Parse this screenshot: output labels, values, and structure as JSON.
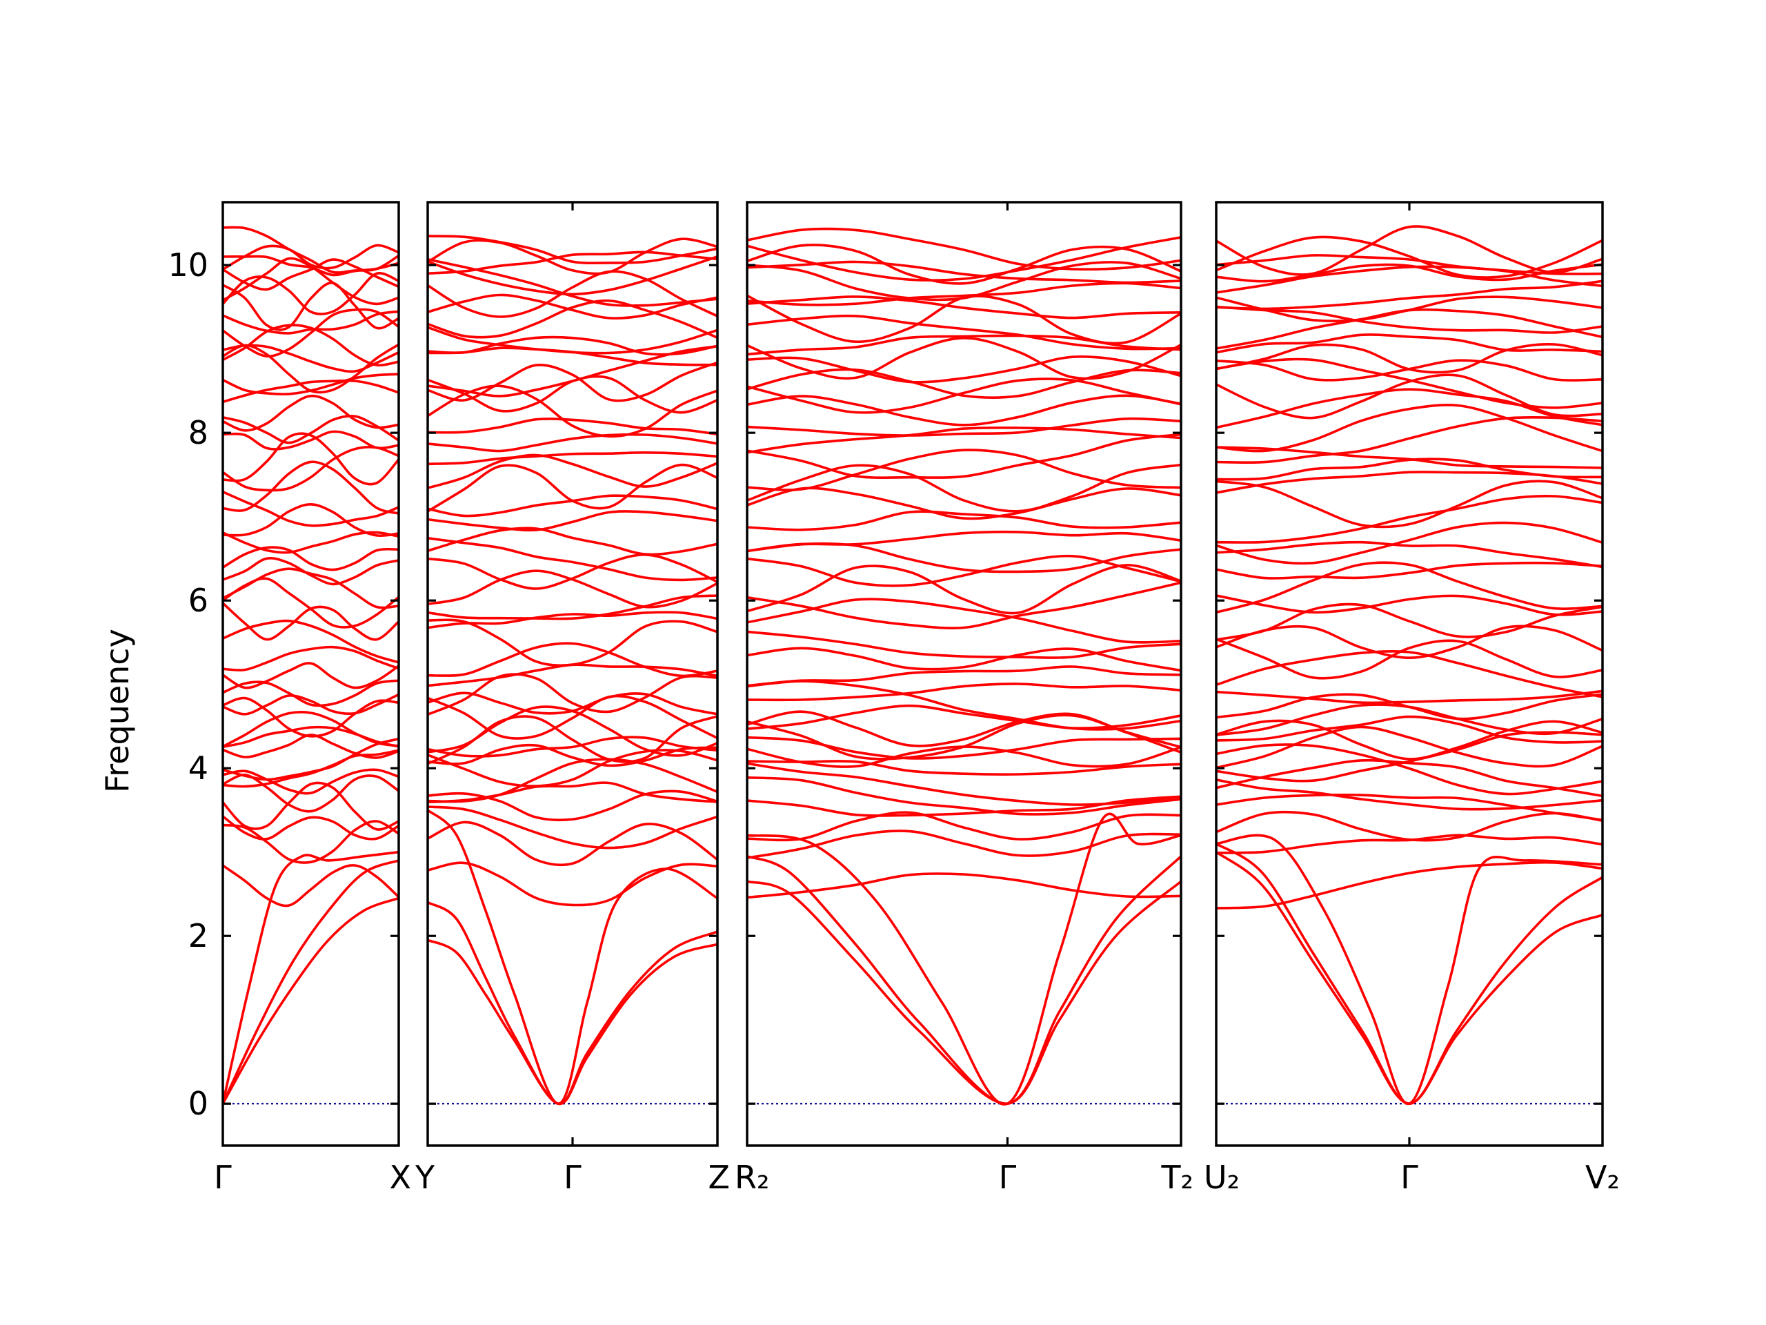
{
  "chart_data": {
    "type": "line",
    "title": "",
    "xlabel": "",
    "ylabel": "Frequency",
    "ylim": [
      -0.5,
      10.75
    ],
    "yticks": [
      "0",
      "2",
      "4",
      "6",
      "8",
      "10"
    ],
    "line_color": "#ff0000",
    "zero_line_color": "#00008b",
    "grid": false,
    "panels": [
      {
        "labels": [
          "Γ",
          "X"
        ],
        "acoustic": [
          {
            "name": "",
            "x": [
              0,
              0.2,
              0.4,
              0.6,
              0.8,
              1.0
            ],
            "y": [
              0,
              0.75,
              1.4,
              1.95,
              2.3,
              2.45
            ]
          },
          {
            "name": "",
            "x": [
              0,
              0.2,
              0.4,
              0.6,
              0.8,
              1.0
            ],
            "y": [
              0,
              0.9,
              1.7,
              2.3,
              2.75,
              2.9
            ]
          },
          {
            "name": "",
            "x": [
              0,
              0.15,
              0.3,
              0.45,
              0.6,
              0.8,
              1.0
            ],
            "y": [
              0,
              1.4,
              2.6,
              2.95,
              2.9,
              2.95,
              3.0
            ]
          }
        ]
      },
      {
        "labels": [
          "Y",
          "Γ",
          "Z"
        ],
        "acoustic": [
          {
            "name": "",
            "x": [
              0,
              0.1,
              0.2,
              0.3,
              0.45,
              0.55,
              0.7,
              0.85,
              1.0
            ],
            "y": [
              1.95,
              1.8,
              1.3,
              0.75,
              0,
              0.55,
              1.3,
              1.75,
              1.9
            ]
          },
          {
            "name": "",
            "x": [
              0,
              0.1,
              0.2,
              0.3,
              0.45,
              0.55,
              0.7,
              0.85,
              1.0
            ],
            "y": [
              2.4,
              2.2,
              1.5,
              0.8,
              0,
              0.6,
              1.35,
              1.85,
              2.05
            ]
          },
          {
            "name": "",
            "x": [
              0,
              0.1,
              0.2,
              0.3,
              0.45,
              0.55,
              0.65,
              0.82,
              1.0
            ],
            "y": [
              3.5,
              3.2,
              2.3,
              1.3,
              0,
              1.2,
              2.4,
              2.8,
              2.45
            ]
          }
        ]
      },
      {
        "labels": [
          "R₂",
          "Γ",
          "T₂"
        ],
        "acoustic": [
          {
            "name": "",
            "x": [
              0,
              0.1,
              0.25,
              0.4,
              0.6,
              0.72,
              0.85,
              1.0
            ],
            "y": [
              2.65,
              2.5,
              1.7,
              0.85,
              0,
              1.0,
              2.0,
              2.65
            ]
          },
          {
            "name": "",
            "x": [
              0,
              0.1,
              0.25,
              0.4,
              0.6,
              0.72,
              0.85,
              1.0
            ],
            "y": [
              2.95,
              2.75,
              1.9,
              0.95,
              0,
              1.1,
              2.2,
              2.95
            ]
          },
          {
            "name": "",
            "x": [
              0,
              0.15,
              0.3,
              0.45,
              0.6,
              0.72,
              0.82,
              0.9,
              1.0
            ],
            "y": [
              3.2,
              3.1,
              2.4,
              1.2,
              0,
              1.8,
              3.4,
              3.1,
              3.2
            ]
          }
        ]
      },
      {
        "labels": [
          "U₂",
          "Γ",
          "V₂"
        ],
        "acoustic": [
          {
            "name": "",
            "x": [
              0,
              0.12,
              0.25,
              0.38,
              0.5,
              0.62,
              0.75,
              0.88,
              1.0
            ],
            "y": [
              3.0,
              2.6,
              1.7,
              0.8,
              0,
              0.8,
              1.5,
              2.05,
              2.25
            ]
          },
          {
            "name": "",
            "x": [
              0,
              0.12,
              0.25,
              0.38,
              0.5,
              0.62,
              0.75,
              0.88,
              1.0
            ],
            "y": [
              3.1,
              2.75,
              1.8,
              0.85,
              0,
              0.85,
              1.7,
              2.35,
              2.7
            ]
          },
          {
            "name": "",
            "x": [
              0,
              0.15,
              0.28,
              0.4,
              0.5,
              0.6,
              0.68,
              0.8,
              1.0
            ],
            "y": [
              3.1,
              3.15,
              2.3,
              1.1,
              0,
              1.4,
              2.8,
              2.9,
              2.85
            ]
          }
        ]
      }
    ],
    "optical_levels": [
      2.6,
      3.1,
      3.3,
      3.55,
      3.7,
      3.85,
      4.0,
      4.15,
      4.25,
      4.35,
      4.45,
      4.6,
      4.75,
      4.9,
      5.1,
      5.3,
      5.5,
      5.75,
      5.95,
      6.15,
      6.35,
      6.5,
      6.7,
      6.95,
      7.15,
      7.35,
      7.55,
      7.7,
      7.9,
      8.05,
      8.25,
      8.45,
      8.6,
      8.75,
      8.9,
      9.05,
      9.2,
      9.35,
      9.5,
      9.65,
      9.8,
      9.9,
      10.0,
      10.1,
      10.18
    ]
  }
}
